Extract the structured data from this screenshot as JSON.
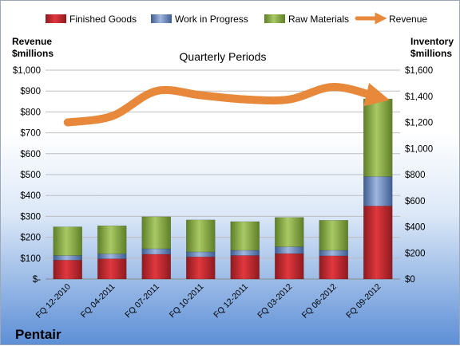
{
  "brand": "Pentair",
  "chart_data": {
    "type": "bar",
    "subtype": "stacked-bar-with-line",
    "title": "Quarterly Periods",
    "left_axis_label": [
      "Revenue",
      "$millions"
    ],
    "right_axis_label": [
      "Inventory",
      "$millions"
    ],
    "categories": [
      "FQ 12-2010",
      "FQ 04-2011",
      "FQ 07-2011",
      "FQ 10-2011",
      "FQ 12-2011",
      "FQ 03-2012",
      "FQ 06-2012",
      "FQ 09-2012"
    ],
    "left_ylim": [
      0,
      1000
    ],
    "right_ylim": [
      0,
      1600
    ],
    "left_ticks": [
      "$-",
      "$100",
      "$200",
      "$300",
      "$400",
      "$500",
      "$600",
      "$700",
      "$800",
      "$900",
      "$1,000"
    ],
    "right_ticks": [
      "$0",
      "$200",
      "$400",
      "$600",
      "$800",
      "$1,000",
      "$1,200",
      "$1,400",
      "$1,600"
    ],
    "legend_position": "top",
    "series": [
      {
        "name": "Finished Goods",
        "axis": "right",
        "color": "#c0262c",
        "values": [
          145,
          155,
          190,
          170,
          180,
          195,
          178,
          560
        ]
      },
      {
        "name": "Work in Progress",
        "axis": "right",
        "color": "#5e7fb8",
        "values": [
          35,
          38,
          42,
          38,
          40,
          52,
          42,
          225
        ]
      },
      {
        "name": "Raw Materials",
        "axis": "right",
        "color": "#8fb04a",
        "values": [
          220,
          215,
          245,
          245,
          220,
          225,
          230,
          595
        ]
      },
      {
        "name": "Revenue",
        "axis": "left",
        "type": "line",
        "color": "#e7883a",
        "values": [
          750,
          780,
          900,
          880,
          860,
          860,
          920,
          870
        ]
      }
    ]
  }
}
